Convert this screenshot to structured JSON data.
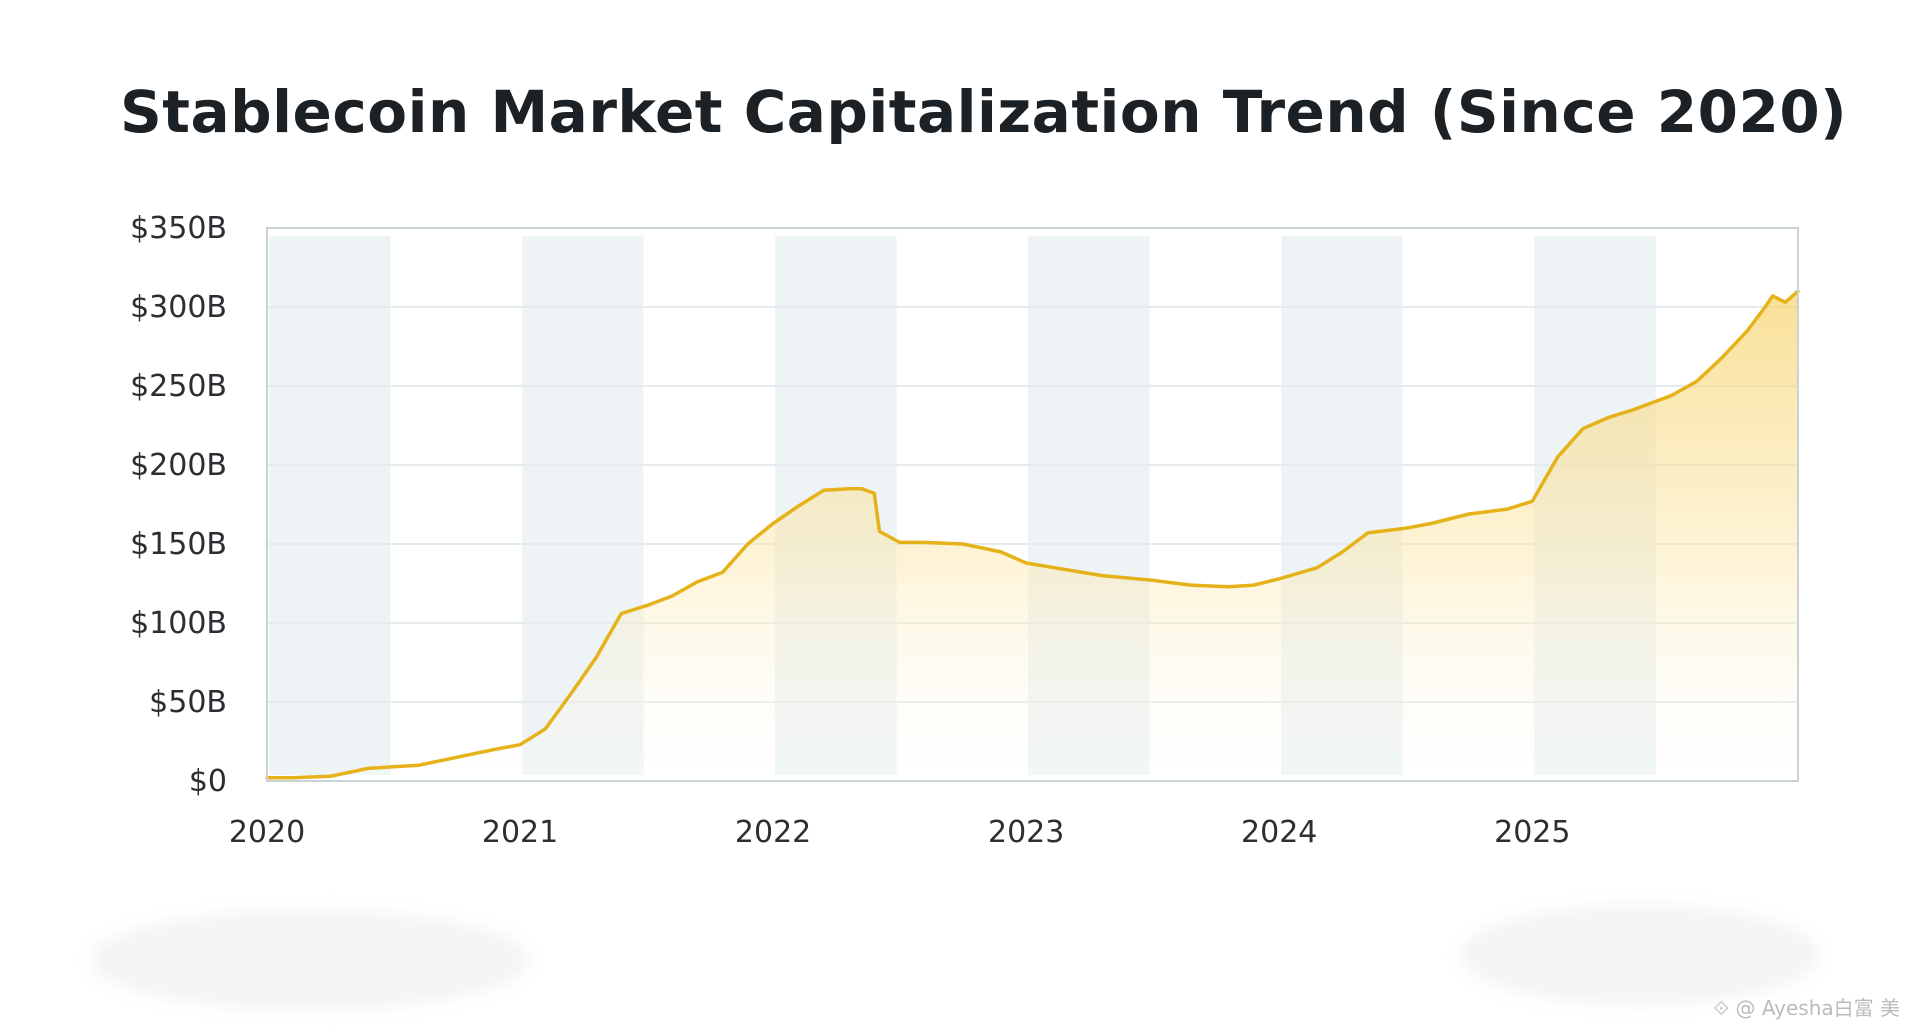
{
  "chart_data": {
    "type": "area",
    "title": "Stablecoin Market Capitalization Trend (Since 2020)",
    "xlabel": "",
    "ylabel": "",
    "x_tick_labels": [
      "2020",
      "2021",
      "2022",
      "2023",
      "2024",
      "2025"
    ],
    "x_ticks": [
      2020,
      2021,
      2022,
      2023,
      2024,
      2025
    ],
    "y_tick_labels": [
      "$0",
      "$50B",
      "$100B",
      "$150B",
      "$200B",
      "$250B",
      "$300B",
      "$350B"
    ],
    "y_ticks": [
      0,
      50,
      100,
      150,
      200,
      250,
      300,
      350
    ],
    "ylim": [
      0,
      350
    ],
    "xlim": [
      2020.0,
      2026.05
    ],
    "grid": true,
    "shaded_half_years": true,
    "series": [
      {
        "color": "#e5b21a",
        "fill_color": "#f7d574",
        "x": [
          2020.0,
          2020.1,
          2020.25,
          2020.4,
          2020.5,
          2020.6,
          2020.75,
          2020.9,
          2021.0,
          2021.1,
          2021.2,
          2021.3,
          2021.4,
          2021.5,
          2021.6,
          2021.7,
          2021.8,
          2021.9,
          2022.0,
          2022.1,
          2022.2,
          2022.3,
          2022.35,
          2022.4,
          2022.42,
          2022.5,
          2022.6,
          2022.75,
          2022.9,
          2023.0,
          2023.15,
          2023.3,
          2023.5,
          2023.65,
          2023.8,
          2023.9,
          2024.0,
          2024.15,
          2024.25,
          2024.35,
          2024.5,
          2024.6,
          2024.75,
          2024.9,
          2025.0,
          2025.1,
          2025.2,
          2025.3,
          2025.4,
          2025.55,
          2025.65,
          2025.75,
          2025.85,
          2025.92,
          2025.95,
          2026.0,
          2026.05
        ],
        "values": [
          2,
          2,
          3,
          8,
          9,
          10,
          15,
          20,
          23,
          33,
          55,
          78,
          106,
          111,
          117,
          126,
          132,
          150,
          163,
          174,
          184,
          185,
          185,
          182,
          158,
          151,
          151,
          150,
          145,
          138,
          134,
          130,
          127,
          124,
          123,
          124,
          128,
          135,
          145,
          157,
          160,
          163,
          169,
          172,
          177,
          205,
          223,
          230,
          235,
          244,
          253,
          268,
          285,
          300,
          307,
          303,
          310
        ]
      }
    ]
  },
  "watermark": "⟐ @ Ayesha白富 美"
}
